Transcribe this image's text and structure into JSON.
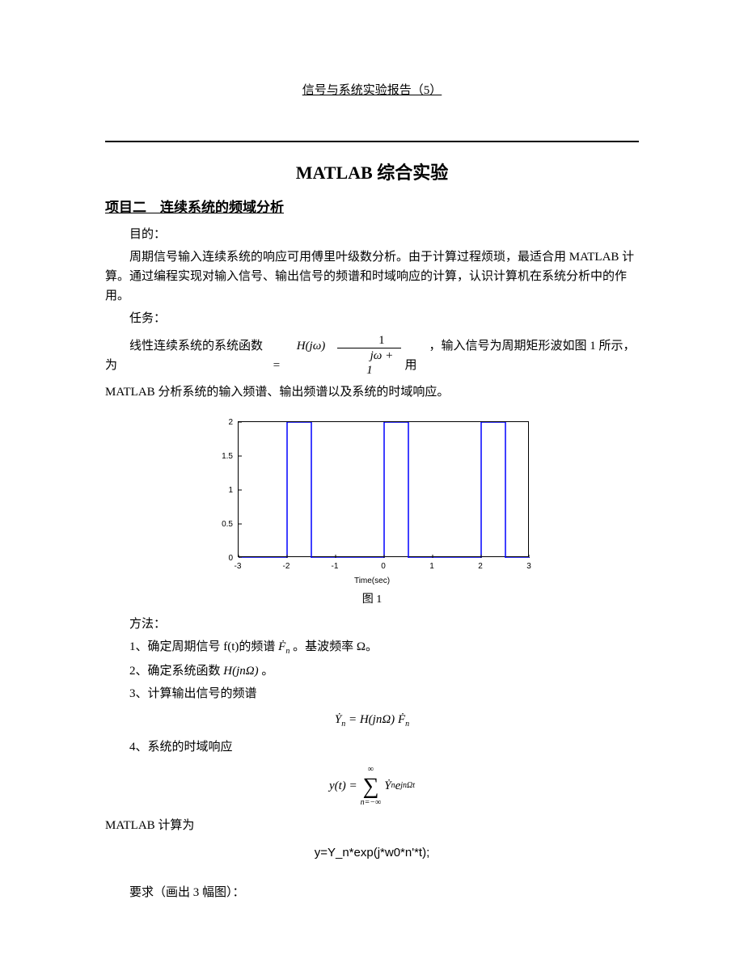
{
  "header": "信号与系统实验报告（5）",
  "main_title_en": "MATLAB ",
  "main_title_cn": "综合实验",
  "section_title": "项目二　连续系统的频域分析",
  "p1_label": "目的：",
  "p1_body": "周期信号输入连续系统的响应可用傅里叶级数分析。由于计算过程烦琐，最适合用 MATLAB 计算。通过编程实现对输入信号、输出信号的频谱和时域响应的计算，认识计算机在系统分析中的作用。",
  "p2_label": "任务：",
  "task_pre": "线性连续系统的系统函数为",
  "task_H": "H(jω) = ",
  "frac_num": "1",
  "frac_den": "jω + 1",
  "task_post": "，输入信号为周期矩形波如图 1 所示，用",
  "task_line2": "MATLAB 分析系统的输入频谱、输出频谱以及系统的时域响应。",
  "chart": {
    "type": "line",
    "xlim": [
      -3,
      3
    ],
    "ylim": [
      0,
      2
    ],
    "xticks": [
      -3,
      -2,
      -1,
      0,
      1,
      2,
      3
    ],
    "yticks": [
      0,
      0.5,
      1,
      1.5,
      2
    ],
    "xlabel": "Time(sec)",
    "line_color": "#0000ff",
    "square_wave": [
      [
        -3,
        0
      ],
      [
        -2,
        0
      ],
      [
        -2,
        2
      ],
      [
        -1.5,
        2
      ],
      [
        -1.5,
        0
      ],
      [
        0,
        0
      ],
      [
        0,
        2
      ],
      [
        0.5,
        2
      ],
      [
        0.5,
        0
      ],
      [
        2,
        0
      ],
      [
        2,
        2
      ],
      [
        2.5,
        2
      ],
      [
        2.5,
        0
      ],
      [
        3,
        0
      ]
    ]
  },
  "caption": "图 1",
  "method_label": "方法：",
  "m1_pre": "1、确定周期信号 f(t)的频谱",
  "m1_F": "Ḟ",
  "m1_Fsub": "n",
  "m1_post": "。基波频率 Ω。",
  "m2_pre": "2、确定系统函数 ",
  "m2_H": "H(jnΩ)",
  "m2_post": " 。",
  "m3": "3、计算输出信号的频谱",
  "eq3_Y": "Ẏ",
  "eq3_sub": "n",
  "eq3_mid": " = H(jnΩ)",
  "eq3_F": "Ḟ",
  "m4": "4、系统的时域响应",
  "eq4_y": "y(t) = ",
  "eq4_sum_top": "∞",
  "eq4_sum_bot": "n=−∞",
  "eq4_Y": "Ẏ",
  "eq4_exp": "e",
  "eq4_sup": "jnΩt",
  "matlab_label": "MATLAB 计算为",
  "code": "y=Y_n*exp(j*w0*n'*t);",
  "req": "要求（画出 3 幅图）："
}
